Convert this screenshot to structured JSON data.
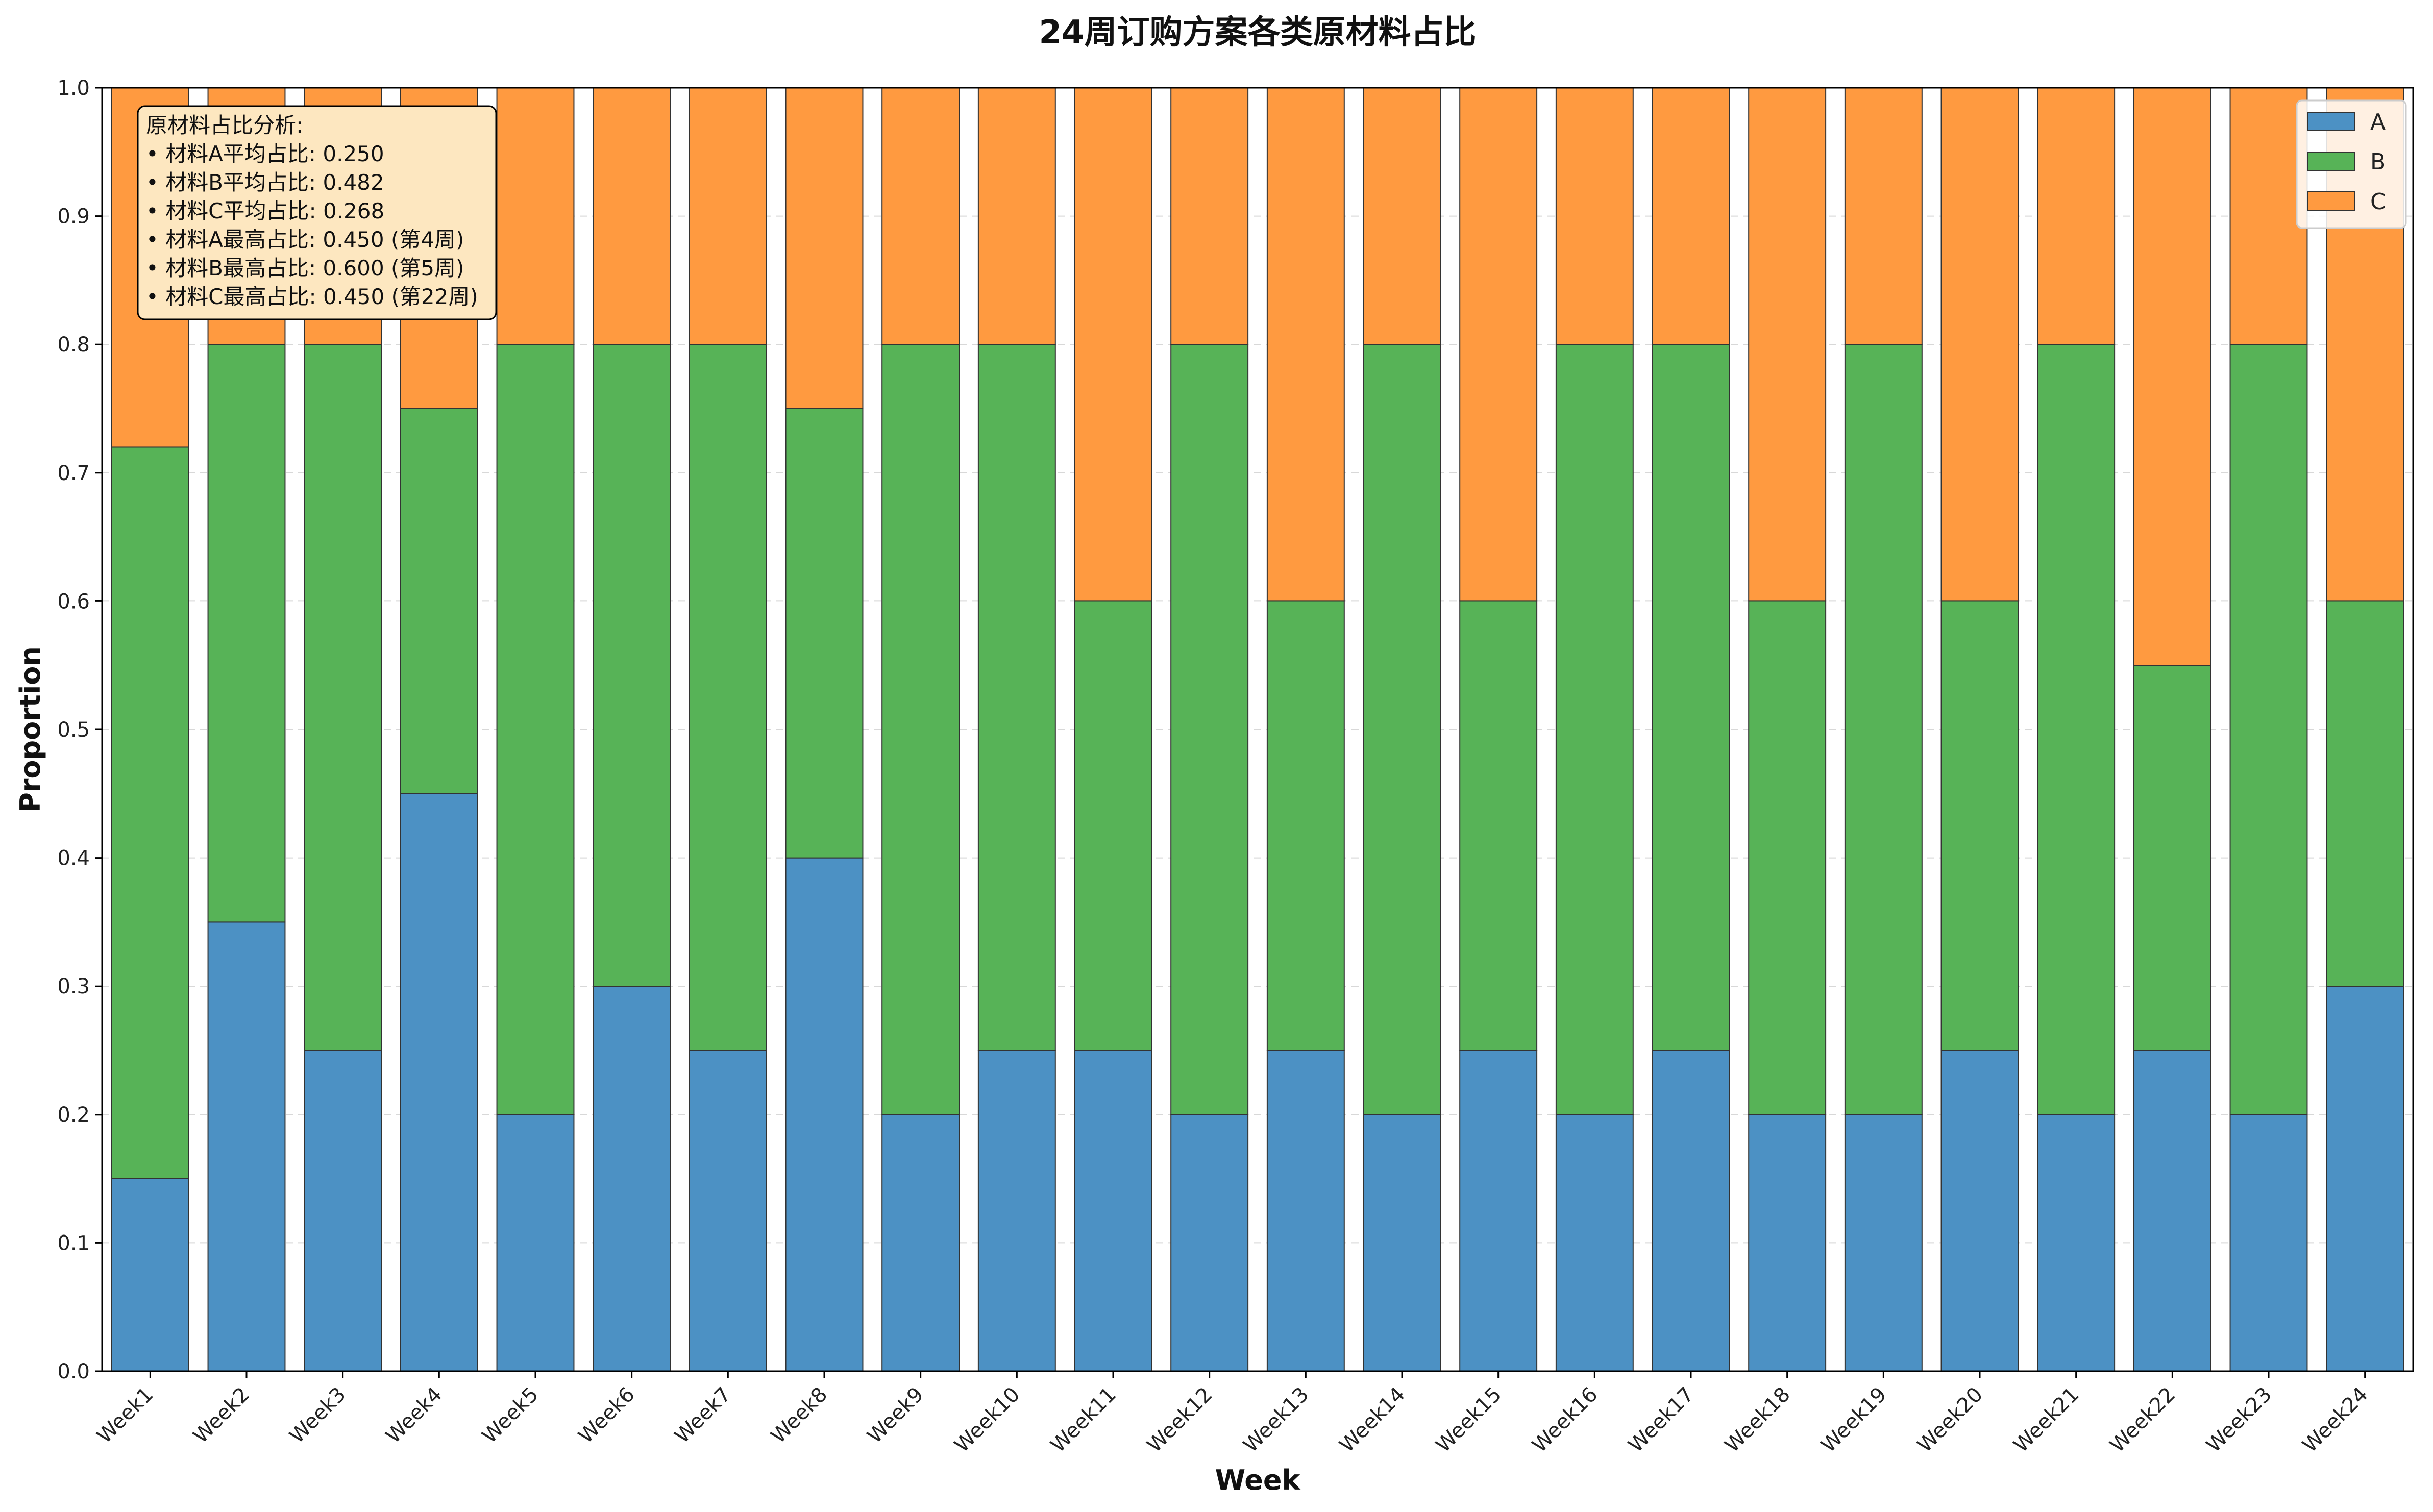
{
  "colors": {
    "A": "#4c91c4",
    "B": "#57b357",
    "C": "#ff9a40"
  },
  "annotation": {
    "lines": [
      "原材料占比分析:",
      "• 材料A平均占比: 0.250",
      "• 材料B平均占比: 0.482",
      "• 材料C平均占比: 0.268",
      "• 材料A最高占比: 0.450 (第4周)",
      "• 材料B最高占比: 0.600 (第5周)",
      "• 材料C最高占比: 0.450 (第22周)"
    ]
  },
  "chart_data": {
    "type": "bar",
    "stacked": true,
    "title": "24周订购方案各类原材料占比",
    "xlabel": "Week",
    "ylabel": "Proportion",
    "ylim": [
      0,
      1.0
    ],
    "yticks": [
      "0.0",
      "0.1",
      "0.2",
      "0.3",
      "0.4",
      "0.5",
      "0.6",
      "0.7",
      "0.8",
      "0.9",
      "1.0"
    ],
    "legend_position": "top-right",
    "grid": "horizontal dashed",
    "categories": [
      "Week1",
      "Week2",
      "Week3",
      "Week4",
      "Week5",
      "Week6",
      "Week7",
      "Week8",
      "Week9",
      "Week10",
      "Week11",
      "Week12",
      "Week13",
      "Week14",
      "Week15",
      "Week16",
      "Week17",
      "Week18",
      "Week19",
      "Week20",
      "Week21",
      "Week22",
      "Week23",
      "Week24"
    ],
    "series": [
      {
        "name": "A",
        "values": [
          0.15,
          0.35,
          0.25,
          0.45,
          0.2,
          0.3,
          0.25,
          0.4,
          0.2,
          0.25,
          0.25,
          0.2,
          0.25,
          0.2,
          0.25,
          0.2,
          0.25,
          0.2,
          0.2,
          0.25,
          0.2,
          0.25,
          0.2,
          0.3
        ]
      },
      {
        "name": "B",
        "values": [
          0.57,
          0.45,
          0.55,
          0.3,
          0.6,
          0.5,
          0.55,
          0.35,
          0.6,
          0.55,
          0.35,
          0.6,
          0.35,
          0.6,
          0.35,
          0.6,
          0.55,
          0.4,
          0.6,
          0.35,
          0.6,
          0.3,
          0.6,
          0.3
        ]
      },
      {
        "name": "C",
        "values": [
          0.28,
          0.2,
          0.2,
          0.25,
          0.2,
          0.2,
          0.2,
          0.25,
          0.2,
          0.2,
          0.4,
          0.2,
          0.4,
          0.2,
          0.4,
          0.2,
          0.2,
          0.4,
          0.2,
          0.4,
          0.2,
          0.45,
          0.2,
          0.4
        ]
      }
    ]
  }
}
